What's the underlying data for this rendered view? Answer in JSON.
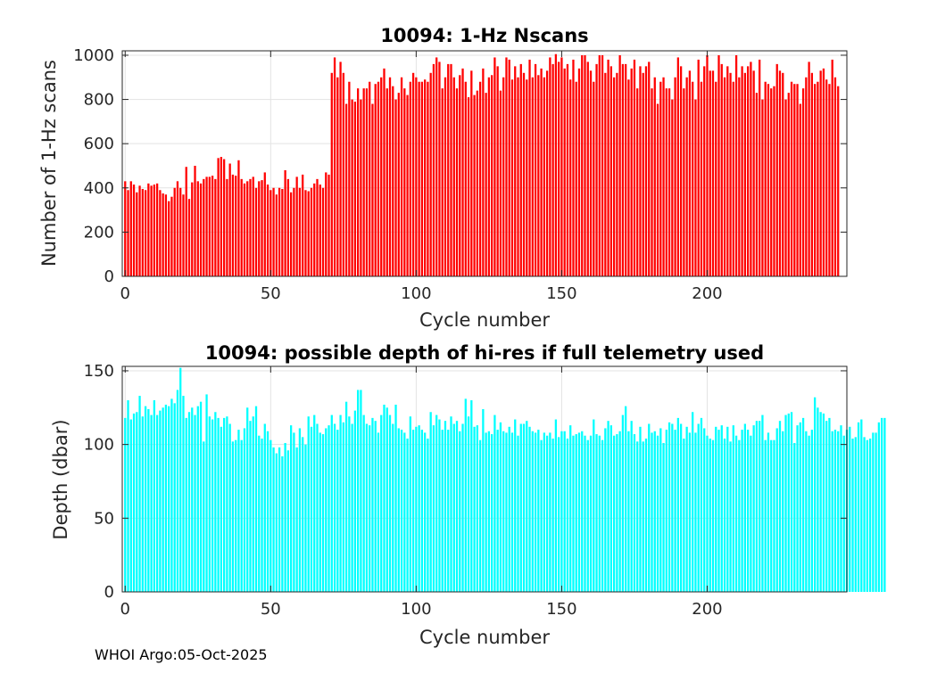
{
  "footer": "WHOI Argo:05-Oct-2025",
  "chart_data": [
    {
      "type": "bar",
      "title": "10094: 1-Hz Nscans",
      "xlabel": "Cycle number",
      "ylabel": "Number of 1-Hz scans",
      "xlim": [
        -1,
        248
      ],
      "ylim": [
        0,
        1020
      ],
      "xticks": [
        0,
        50,
        100,
        150,
        200
      ],
      "yticks": [
        0,
        200,
        400,
        600,
        800,
        1000
      ],
      "grid": true,
      "color": "#ff0000",
      "x_start": 0,
      "values": [
        430,
        390,
        430,
        415,
        380,
        410,
        395,
        390,
        420,
        410,
        415,
        420,
        390,
        375,
        370,
        340,
        360,
        400,
        430,
        400,
        370,
        495,
        350,
        425,
        500,
        430,
        420,
        440,
        450,
        450,
        455,
        440,
        535,
        540,
        530,
        440,
        510,
        460,
        455,
        525,
        440,
        420,
        430,
        440,
        450,
        400,
        430,
        435,
        470,
        415,
        390,
        400,
        370,
        400,
        395,
        480,
        440,
        380,
        400,
        450,
        400,
        460,
        390,
        385,
        400,
        420,
        440,
        415,
        400,
        470,
        460,
        920,
        990,
        900,
        970,
        920,
        780,
        880,
        800,
        790,
        850,
        800,
        850,
        850,
        880,
        780,
        870,
        880,
        900,
        940,
        850,
        900,
        860,
        800,
        830,
        900,
        850,
        820,
        880,
        920,
        900,
        880,
        880,
        890,
        880,
        920,
        960,
        990,
        970,
        850,
        900,
        960,
        960,
        900,
        850,
        910,
        940,
        880,
        810,
        930,
        820,
        840,
        880,
        940,
        830,
        900,
        910,
        990,
        950,
        840,
        900,
        990,
        980,
        890,
        950,
        900,
        960,
        920,
        890,
        980,
        900,
        960,
        910,
        940,
        900,
        930,
        990,
        960,
        1005,
        970,
        990,
        940,
        960,
        890,
        980,
        880,
        940,
        1000,
        1000,
        970,
        930,
        880,
        960,
        1000,
        1000,
        920,
        980,
        950,
        900,
        920,
        1000,
        960,
        960,
        890,
        940,
        980,
        850,
        950,
        920,
        950,
        970,
        850,
        900,
        780,
        880,
        900,
        850,
        850,
        800,
        900,
        990,
        950,
        850,
        900,
        930,
        880,
        800,
        980,
        880,
        950,
        1000,
        930,
        930,
        880,
        1000,
        960,
        900,
        950,
        920,
        880,
        1000,
        900,
        950,
        920,
        950,
        970,
        930,
        830,
        980,
        800,
        880,
        870,
        850,
        860,
        960,
        930,
        920,
        800,
        830,
        880,
        870,
        870,
        780,
        850,
        900,
        970,
        920,
        870,
        880,
        930,
        940,
        890,
        870,
        980,
        900,
        860
      ]
    },
    {
      "type": "bar",
      "title": "10094: possible depth of hi-res if full telemetry used",
      "xlabel": "Cycle number",
      "ylabel": "Depth (dbar)",
      "xlim": [
        -1,
        248
      ],
      "ylim": [
        0,
        153
      ],
      "xticks": [
        0,
        50,
        100,
        150,
        200
      ],
      "yticks": [
        0,
        50,
        100,
        150
      ],
      "grid": true,
      "color": "#00ffff",
      "x_start": 0,
      "values": [
        118,
        130,
        117,
        121,
        122,
        133,
        119,
        126,
        124,
        120,
        130,
        120,
        123,
        125,
        127,
        126,
        131,
        128,
        137,
        152,
        133,
        118,
        122,
        125,
        120,
        126,
        129,
        102,
        134,
        119,
        117,
        122,
        118,
        112,
        118,
        119,
        114,
        102,
        103,
        110,
        103,
        111,
        125,
        116,
        119,
        126,
        106,
        104,
        114,
        109,
        103,
        98,
        94,
        98,
        92,
        101,
        96,
        113,
        108,
        98,
        111,
        105,
        100,
        119,
        112,
        120,
        114,
        108,
        107,
        111,
        113,
        120,
        114,
        110,
        120,
        115,
        129,
        119,
        114,
        123,
        137,
        137,
        120,
        114,
        113,
        118,
        116,
        108,
        120,
        127,
        125,
        120,
        114,
        127,
        111,
        110,
        108,
        104,
        119,
        110,
        112,
        113,
        110,
        108,
        104,
        122,
        113,
        120,
        117,
        110,
        116,
        110,
        119,
        114,
        116,
        109,
        114,
        131,
        119,
        130,
        112,
        113,
        103,
        124,
        108,
        109,
        107,
        120,
        110,
        115,
        109,
        108,
        112,
        108,
        117,
        106,
        114,
        114,
        116,
        112,
        109,
        108,
        110,
        103,
        108,
        106,
        108,
        104,
        117,
        105,
        109,
        109,
        104,
        113,
        106,
        107,
        108,
        109,
        106,
        103,
        106,
        117,
        107,
        106,
        103,
        111,
        116,
        113,
        106,
        107,
        109,
        120,
        126,
        109,
        116,
        107,
        102,
        112,
        102,
        104,
        114,
        108,
        109,
        106,
        111,
        101,
        110,
        115,
        114,
        110,
        118,
        114,
        104,
        112,
        108,
        122,
        108,
        114,
        118,
        111,
        106,
        104,
        103,
        112,
        110,
        113,
        104,
        112,
        102,
        113,
        106,
        103,
        110,
        114,
        110,
        106,
        113,
        116,
        116,
        120,
        103,
        108,
        103,
        103,
        111,
        116,
        109,
        120,
        121,
        122,
        101,
        113,
        115,
        118,
        109,
        106,
        110,
        132,
        125,
        122,
        121,
        116,
        118,
        109,
        110,
        109,
        113,
        106,
        110,
        112,
        104,
        105,
        115,
        117,
        105,
        103,
        104,
        108,
        108,
        115,
        118,
        118
      ]
    }
  ]
}
